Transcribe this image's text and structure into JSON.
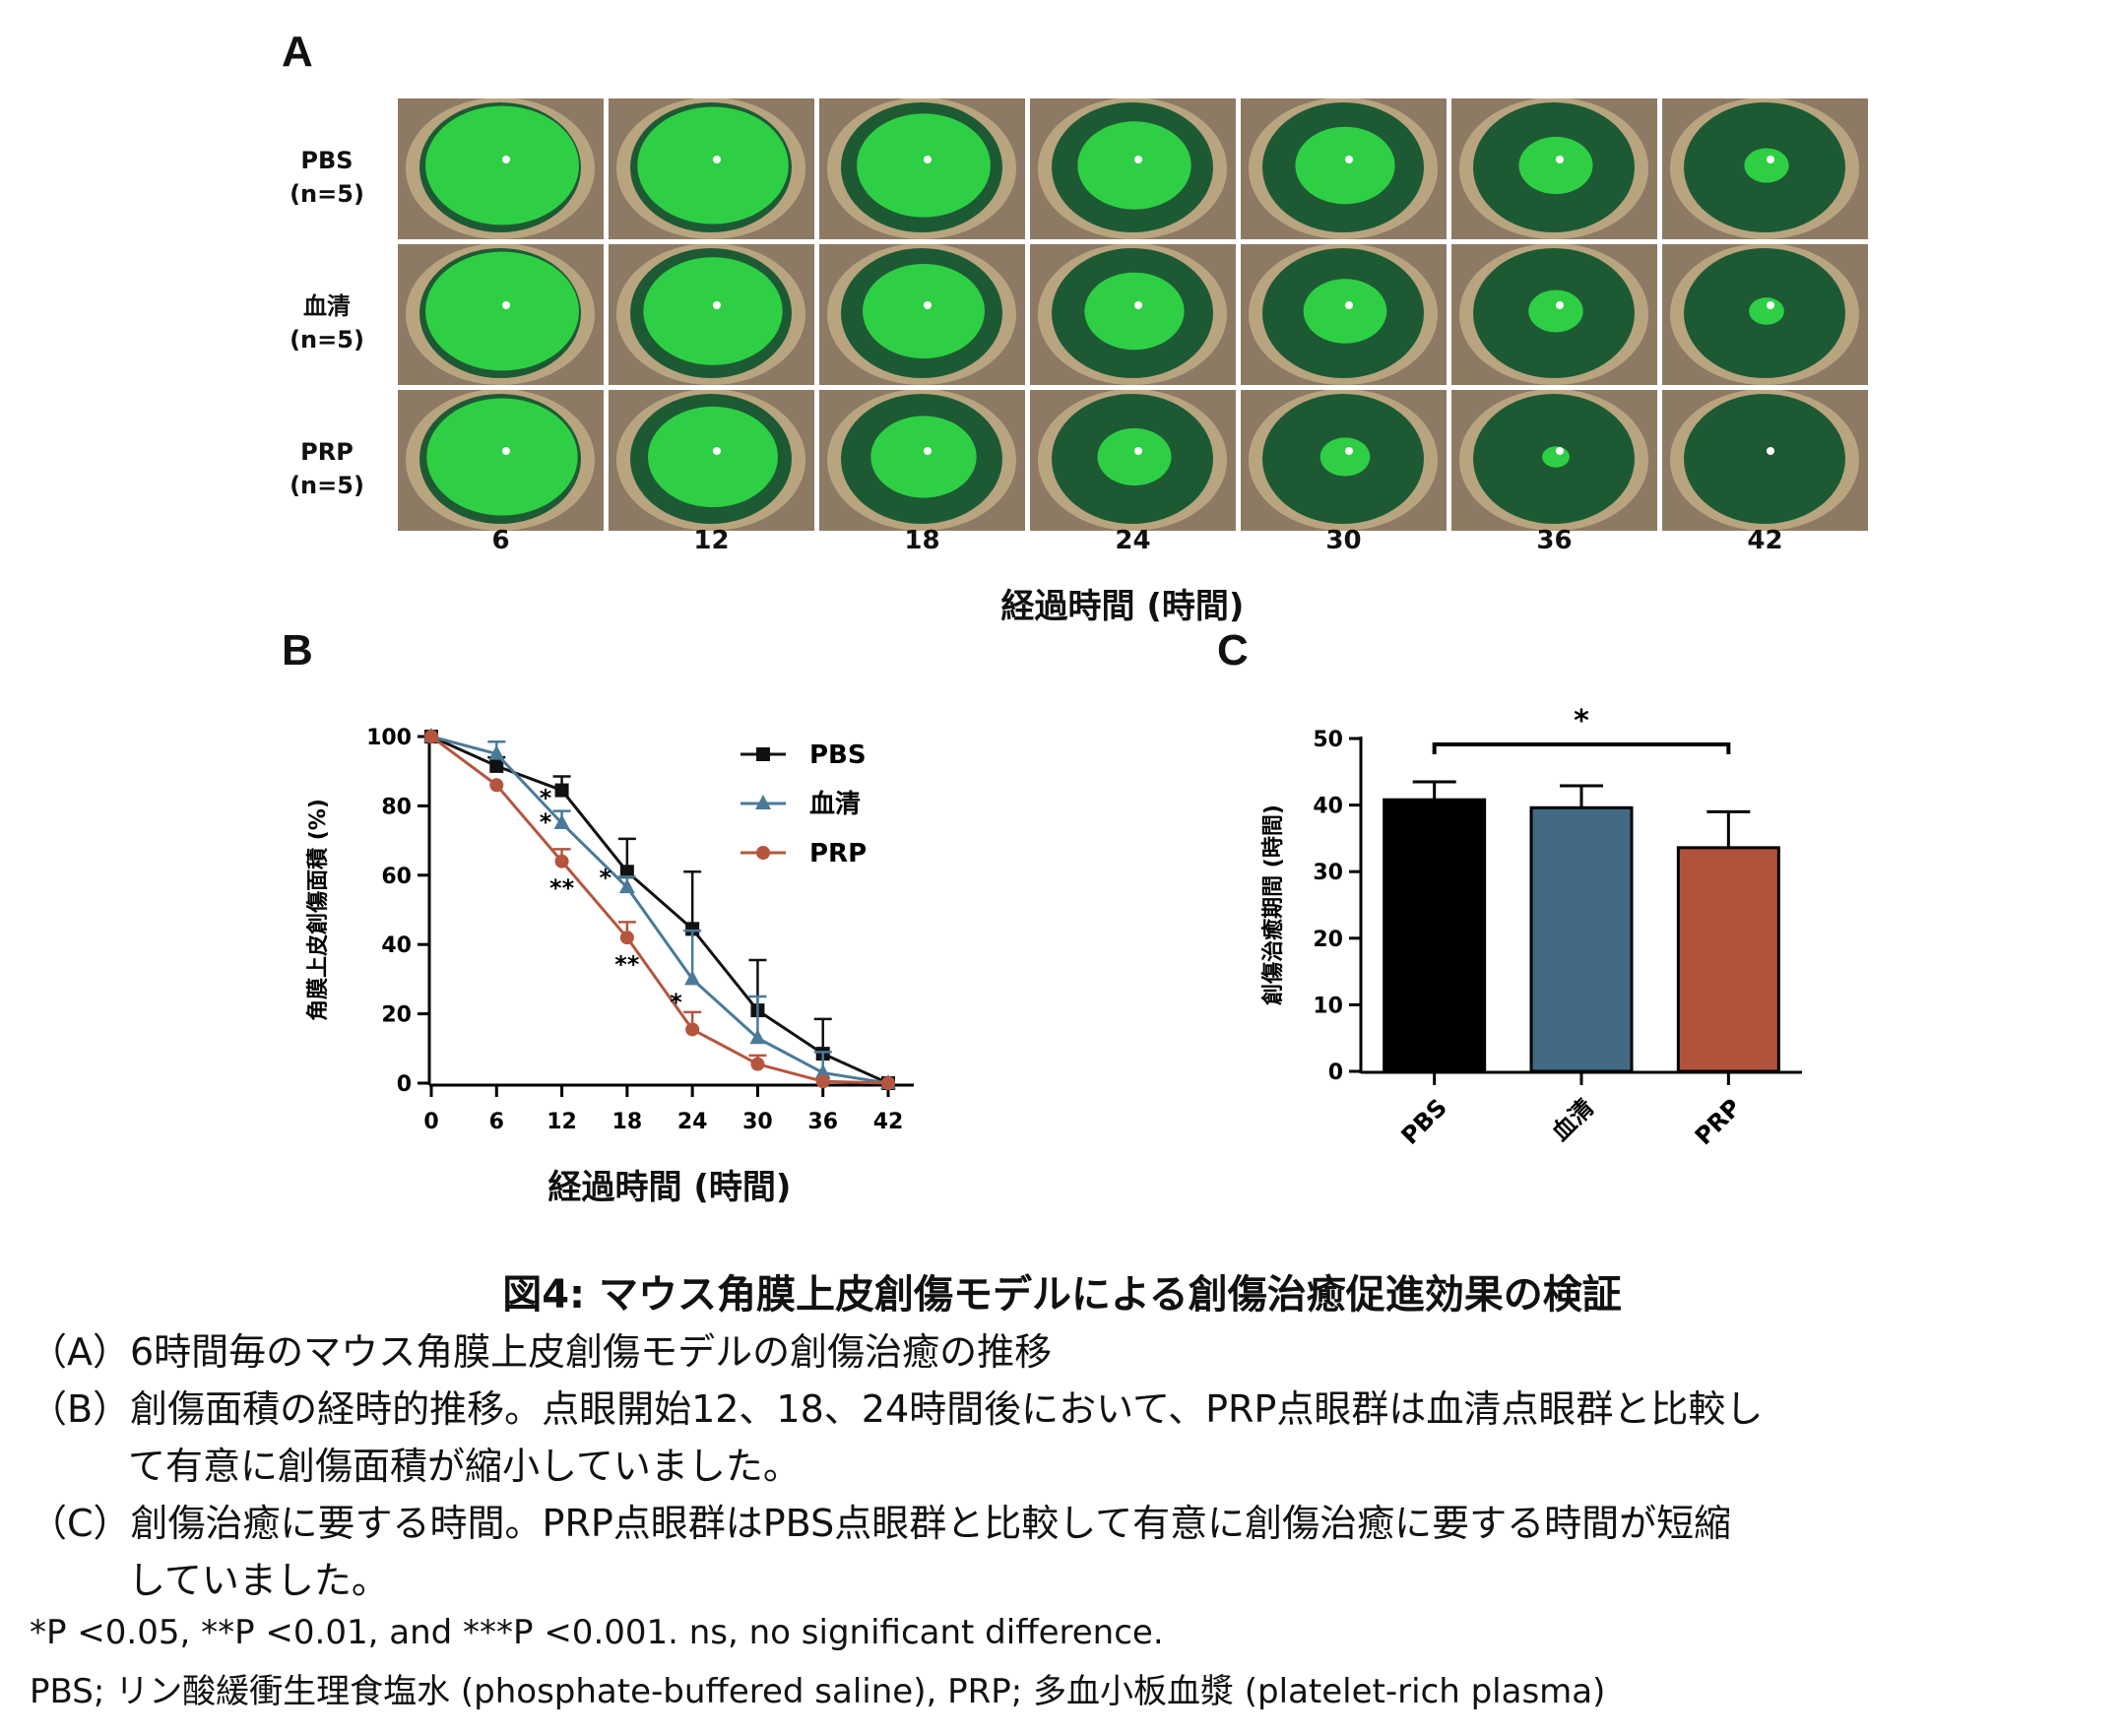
{
  "panel_a": {
    "letter": "A",
    "rows": [
      {
        "name": "PBS",
        "n": "(n=5)"
      },
      {
        "name": "血清",
        "n": "(n=5)"
      },
      {
        "name": "PRP",
        "n": "(n=5)"
      }
    ],
    "columns": [
      "6",
      "12",
      "18",
      "24",
      "30",
      "36",
      "42"
    ],
    "x_title": "経過時間 (時間)",
    "stain_fraction": [
      [
        0.95,
        0.92,
        0.72,
        0.52,
        0.4,
        0.22,
        0.08
      ],
      [
        0.95,
        0.78,
        0.6,
        0.4,
        0.28,
        0.12,
        0.05
      ],
      [
        0.92,
        0.68,
        0.45,
        0.22,
        0.1,
        0.03,
        0.0
      ]
    ],
    "colors": {
      "stain": "#2fcf45",
      "cornea": "#1d5a34",
      "sclera": "#b9a480",
      "fur": "#8d7a64"
    }
  },
  "chart_data": [
    {
      "panel": "B",
      "type": "line",
      "xlabel": "経過時間 (時間)",
      "ylabel": "角膜上皮創傷面積 (%)",
      "x": [
        0,
        6,
        12,
        18,
        24,
        30,
        36,
        42
      ],
      "xticks": [
        "0",
        "6",
        "12",
        "18",
        "24",
        "30",
        "36",
        "42"
      ],
      "yticks": [
        "0",
        "20",
        "40",
        "60",
        "80",
        "100"
      ],
      "xlim": [
        0,
        42
      ],
      "ylim": [
        0,
        100
      ],
      "legend_position": "top-right",
      "series": [
        {
          "name": "PBS",
          "marker": "square",
          "color": "#111111",
          "values": [
            100,
            91.5,
            84.5,
            61,
            44.5,
            21,
            8.5,
            0
          ],
          "err": [
            0,
            2.5,
            4,
            9.5,
            16.5,
            14.5,
            10,
            0
          ]
        },
        {
          "name": "血清",
          "marker": "triangle",
          "color": "#4a7a99",
          "values": [
            100,
            95,
            75,
            56.5,
            30,
            13,
            3,
            0
          ],
          "err": [
            0,
            3.5,
            3.5,
            3,
            14,
            12,
            6,
            0
          ]
        },
        {
          "name": "PRP",
          "marker": "circle",
          "color": "#b5553e",
          "values": [
            100,
            86,
            64,
            42,
            15.5,
            5.5,
            0.5,
            0
          ],
          "err": [
            0,
            0,
            3.5,
            4.5,
            5,
            2.5,
            0,
            0
          ]
        }
      ],
      "annotations": [
        {
          "text": "*",
          "x": 10.5,
          "y": 80
        },
        {
          "text": "*",
          "x": 10.5,
          "y": 73
        },
        {
          "text": "**",
          "x": 12,
          "y": 54
        },
        {
          "text": "*",
          "x": 16,
          "y": 57
        },
        {
          "text": "**",
          "x": 18,
          "y": 32
        },
        {
          "text": "*",
          "x": 22.5,
          "y": 21
        }
      ]
    },
    {
      "panel": "C",
      "type": "bar",
      "ylabel": "創傷治癒期間 (時間)",
      "categories": [
        "PBS",
        "血清",
        "PRP"
      ],
      "values": [
        40.8,
        39.6,
        33.6
      ],
      "err": [
        2.7,
        3.3,
        5.4
      ],
      "colors": [
        "#000000",
        "#426a83",
        "#b0533d"
      ],
      "ylim": [
        0,
        50
      ],
      "yticks": [
        "0",
        "10",
        "20",
        "30",
        "40",
        "50"
      ],
      "significance": {
        "from": "PBS",
        "to": "PRP",
        "text": "*"
      }
    }
  ],
  "panel_b": {
    "letter": "B"
  },
  "panel_c": {
    "letter": "C"
  },
  "caption": {
    "title": "図4:  マウス角膜上皮創傷モデルによる創傷治癒促進効果の検証",
    "lines": [
      "（A）6時間毎のマウス角膜上皮創傷モデルの創傷治癒の推移",
      "（B）創傷面積の経時的推移。点眼開始12、18、24時間後において、PRP点眼群は血清点眼群と比較し",
      "て有意に創傷面積が縮小していました。",
      "（C）創傷治癒に要する時間。PRP点眼群はPBS点眼群と比較して有意に創傷治癒に要する時間が短縮",
      "していました。"
    ],
    "footnote_1": "*P <0.05, **P <0.01, and ***P <0.001. ns, no significant difference.",
    "footnote_2": "PBS; リン酸緩衝生理食塩水 (phosphate-buffered saline), PRP; 多血小板血漿 (platelet-rich plasma)"
  }
}
